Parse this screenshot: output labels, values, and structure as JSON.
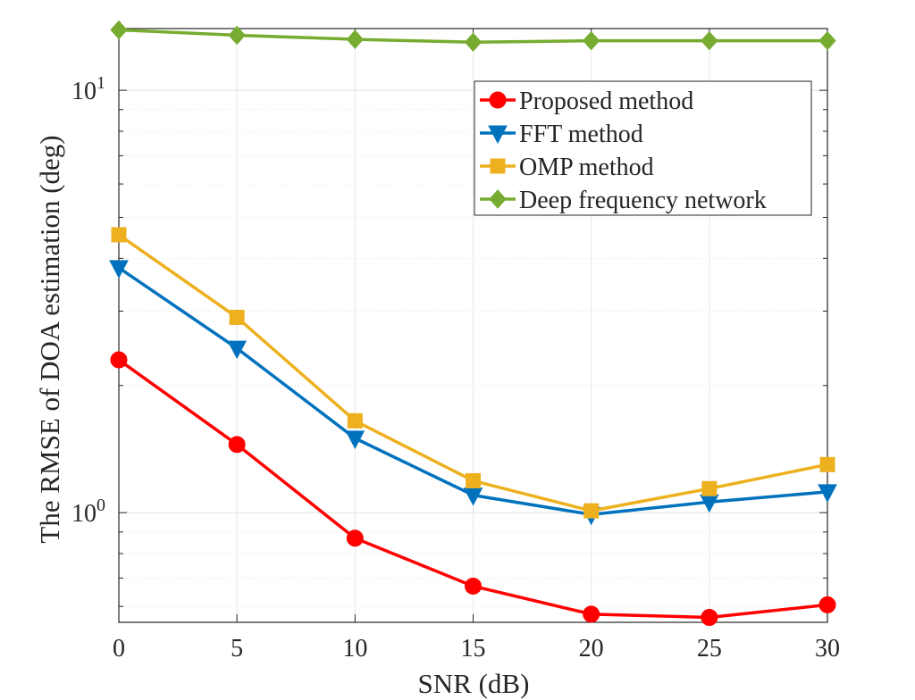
{
  "chart_data": {
    "type": "line",
    "title": "",
    "xlabel": "SNR (dB)",
    "ylabel": "The RMSE of DOA estimation (deg)",
    "x": [
      0,
      5,
      10,
      15,
      20,
      25,
      30
    ],
    "xticks": [
      "0",
      "5",
      "10",
      "15",
      "20",
      "25",
      "30"
    ],
    "xlim": [
      0,
      30
    ],
    "yscale": "log",
    "ylim": [
      0.55,
      14
    ],
    "yticks": [
      {
        "value": 1,
        "base": "10",
        "exp": "0"
      },
      {
        "value": 10,
        "base": "10",
        "exp": "1"
      }
    ],
    "grid": true,
    "legend_position": "top-right",
    "series": [
      {
        "name": "Proposed method",
        "color": "#ff0000",
        "marker": "circle",
        "values": [
          2.3,
          1.45,
          0.87,
          0.67,
          0.575,
          0.565,
          0.605
        ]
      },
      {
        "name": "FFT method",
        "color": "#0072bd",
        "marker": "triangle-down",
        "values": [
          3.8,
          2.45,
          1.5,
          1.1,
          0.99,
          1.06,
          1.12
        ]
      },
      {
        "name": "OMP method",
        "color": "#edb120",
        "marker": "square",
        "values": [
          4.55,
          2.9,
          1.65,
          1.19,
          1.01,
          1.14,
          1.3
        ]
      },
      {
        "name": "Deep frequency network",
        "color": "#77ac30",
        "marker": "diamond",
        "values": [
          13.9,
          13.5,
          13.2,
          13.0,
          13.1,
          13.1,
          13.1
        ]
      }
    ]
  }
}
